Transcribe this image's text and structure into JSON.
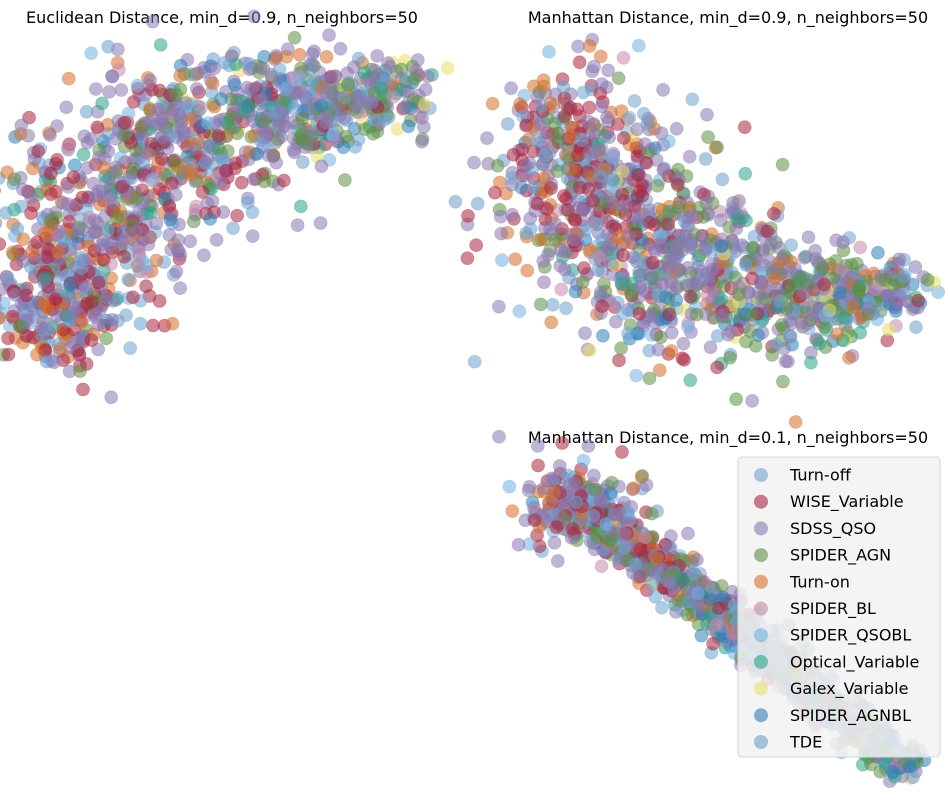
{
  "figure": {
    "panels": [
      {
        "id": "euclid",
        "title": "Euclidean Distance, min_d=0.9, n_neighbors=50"
      },
      {
        "id": "manhattan_09",
        "title": "Manhattan Distance, min_d=0.9, n_neighbors=50"
      },
      {
        "id": "manhattan_01",
        "title": "Manhattan Distance, min_d=0.1, n_neighbors=50"
      }
    ],
    "legend": {
      "placement": "right, overlapping lower-right panel",
      "entries": [
        {
          "label": "Turn-off",
          "color": "#6fa2cf"
        },
        {
          "label": "WISE_Variable",
          "color": "#a9273f"
        },
        {
          "label": "SDSS_QSO",
          "color": "#8a78b0"
        },
        {
          "label": "SPIDER_AGN",
          "color": "#5e8f45"
        },
        {
          "label": "Turn-on",
          "color": "#d36f2c"
        },
        {
          "label": "SPIDER_BL",
          "color": "#c48aab"
        },
        {
          "label": "SPIDER_QSOBL",
          "color": "#74b1e0"
        },
        {
          "label": "Optical_Variable",
          "color": "#2aa388"
        },
        {
          "label": "Galex_Variable",
          "color": "#e8de6a"
        },
        {
          "label": "SPIDER_AGNBL",
          "color": "#2c7fb8"
        },
        {
          "label": "TDE",
          "color": "#6a9ec8"
        }
      ]
    }
  },
  "chart_data": [
    {
      "type": "scatter",
      "title": "Euclidean Distance, min_d=0.9, n_neighbors=50",
      "axes": "off",
      "grid": false,
      "embedding_shape": "crescent arching from lower-left to upper-right",
      "series_regions": {
        "WISE_Variable": "concentrated on left / lower-left",
        "SDSS_QSO": "spread across whole crescent",
        "SPIDER_AGN": "concentrated toward upper-right tip",
        "Galex_Variable": "upper-right tip",
        "Optical_Variable": "upper-right tip",
        "Turn-on": "lower-left and middle-lower",
        "Turn-off": "scattered, mostly left"
      }
    },
    {
      "type": "scatter",
      "title": "Manhattan Distance, min_d=0.9, n_neighbors=50",
      "axes": "off",
      "grid": false,
      "embedding_shape": "broad wedge from upper-left descending to right",
      "series_regions": {
        "WISE_Variable": "upper-left",
        "SDSS_QSO": "spread across whole wedge",
        "SPIDER_AGN": "right side and lower edge",
        "Galex_Variable": "right tip",
        "Optical_Variable": "right tip",
        "Turn-on": "lower-left"
      }
    },
    {
      "type": "scatter",
      "title": "Manhattan Distance, min_d=0.1, n_neighbors=50",
      "axes": "off",
      "grid": false,
      "legend": "right",
      "embedding_shape": "narrow band from upper-left to lower-right",
      "series_regions": {
        "WISE_Variable": "upper-left",
        "SDSS_QSO": "upper-left to middle",
        "SPIDER_AGN": "middle",
        "SPIDER_AGNBL": "lower-right tip",
        "Turn-on": "middle-left"
      }
    }
  ]
}
